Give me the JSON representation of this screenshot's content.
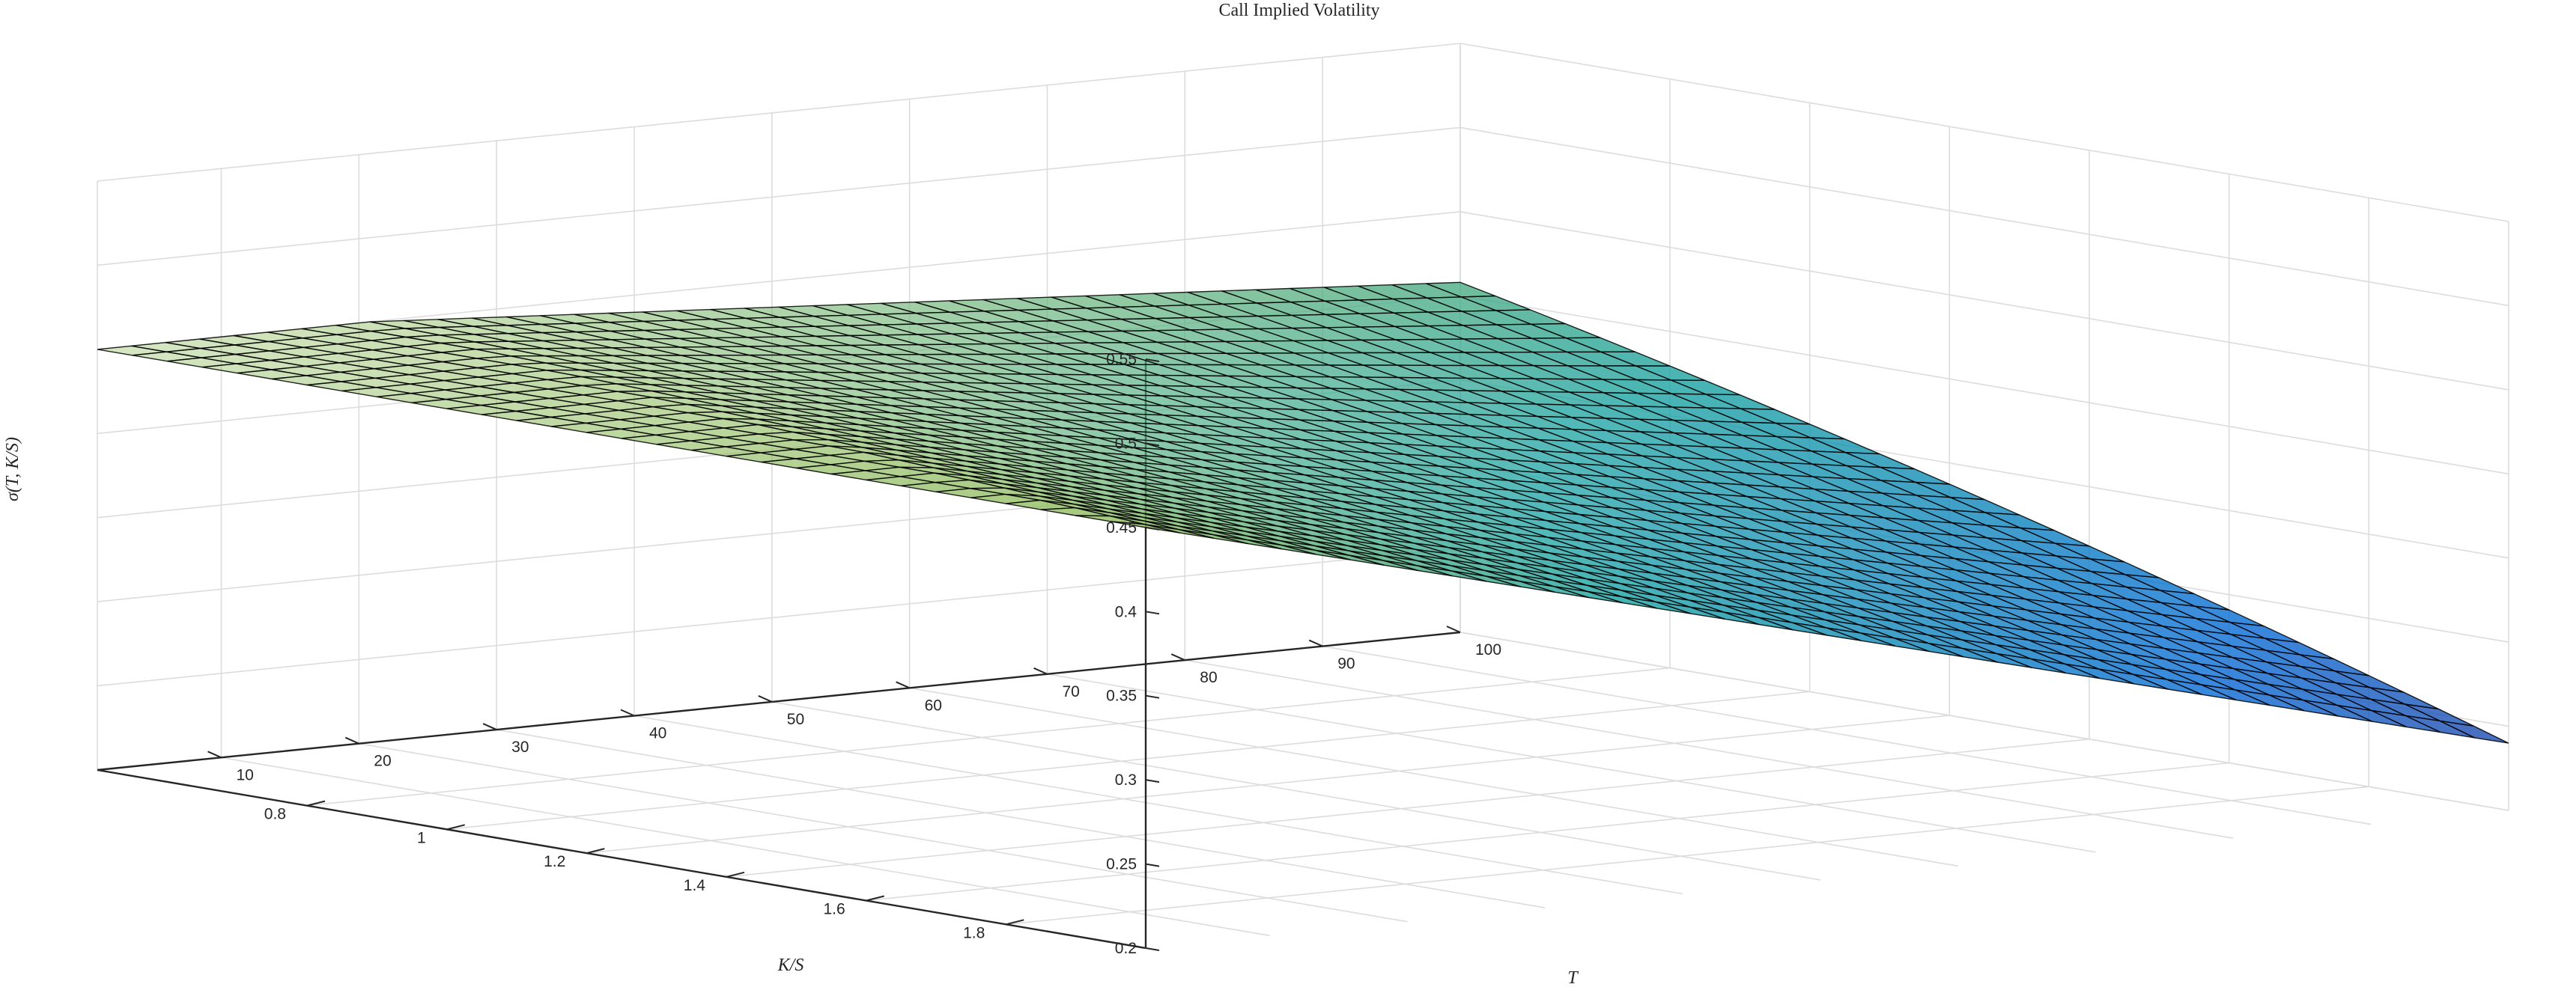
{
  "chart_data": {
    "type": "surface",
    "title": "Call Implied Volatility",
    "xlabel": "T",
    "ylabel": "K/S",
    "zlabel": "σ(T, K/S)",
    "x_ticks": [
      10,
      20,
      30,
      40,
      50,
      60,
      70,
      80,
      90,
      100
    ],
    "y_ticks": [
      0.8,
      1,
      1.2,
      1.4,
      1.6,
      1.8
    ],
    "z_ticks": [
      0.2,
      0.25,
      0.3,
      0.35,
      0.4,
      0.45,
      0.5,
      0.55
    ],
    "xlim": [
      1,
      100
    ],
    "ylim": [
      0.5,
      2
    ],
    "zlim": [
      0.2,
      0.55
    ],
    "grid": true,
    "colormap": "parula (dark, dense mesh edges)",
    "corner_values": [
      {
        "T": 1,
        "K/S": 0.5,
        "sigma": 0.45
      },
      {
        "T": 1,
        "K/S": 2.0,
        "sigma": 0.45
      },
      {
        "T": 100,
        "K/S": 0.5,
        "sigma": 0.44
      },
      {
        "T": 100,
        "K/S": 2.0,
        "sigma": 0.24
      }
    ]
  }
}
